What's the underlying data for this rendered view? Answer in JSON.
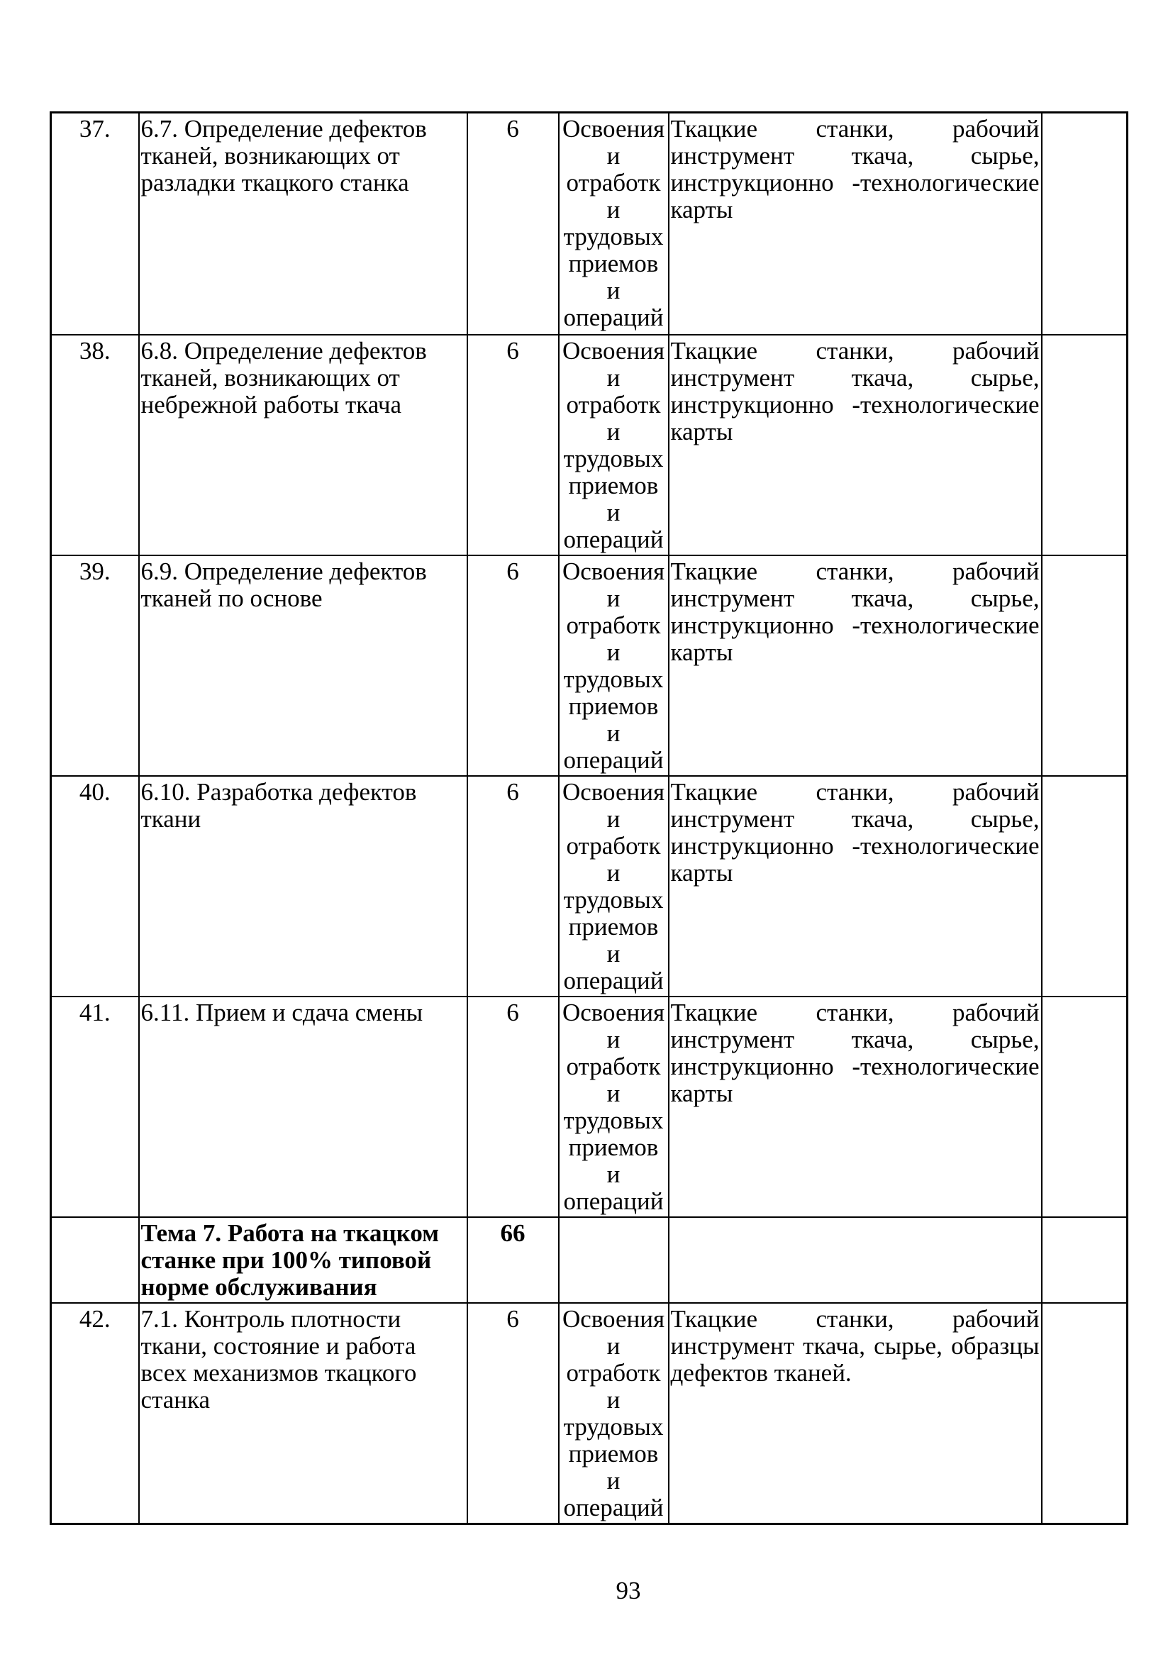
{
  "page": {
    "number": "93"
  },
  "table": {
    "rows": [
      {
        "num": "37.",
        "topic": "6.7. Определение дефектов тканей, возникающих от разладки ткацкого станка",
        "hours": "6",
        "form": "Освоения\nи\nотработк\nи\nтрудовых\nприемов\nи\nопераций",
        "equipment_lines": [
          "Ткацкие станки, рабочий",
          "инструмент ткача, сырье,",
          "инструкционно -технологические",
          "карты"
        ],
        "notes": ""
      },
      {
        "num": "38.",
        "topic": "6.8. Определение дефектов тканей, возникающих от небрежной работы ткача",
        "hours": "6",
        "form": "Освоения\nи\nотработк\nи\nтрудовых\nприемов\nи\nопераций",
        "equipment_lines": [
          "Ткацкие станки, рабочий",
          "инструмент ткача, сырье,",
          "инструкционно -технологические",
          "карты"
        ],
        "notes": ""
      },
      {
        "num": "39.",
        "topic": "6.9. Определение дефектов тканей по основе",
        "hours": "6",
        "form": "Освоения\nи\nотработк\nи\nтрудовых\nприемов\nи\nопераций",
        "equipment_lines": [
          "Ткацкие станки, рабочий",
          "инструмент ткача, сырье,",
          "инструкционно -технологические",
          "карты"
        ],
        "notes": ""
      },
      {
        "num": "40.",
        "topic": "6.10. Разработка дефектов ткани",
        "hours": "6",
        "form": "Освоения\nи\nотработк\nи\nтрудовых\nприемов\nи\nопераций",
        "equipment_lines": [
          "Ткацкие станки, рабочий",
          "инструмент ткача, сырье,",
          "инструкционно -технологические",
          "карты"
        ],
        "notes": ""
      },
      {
        "num": "41.",
        "topic": "6.11. Прием и сдача смены",
        "hours": "6",
        "form": "Освоения\nи\nотработк\nи\nтрудовых\nприемов\nи\nопераций",
        "equipment_lines": [
          "Ткацкие станки, рабочий",
          "инструмент ткача, сырье,",
          "инструкционно -технологические",
          "карты"
        ],
        "notes": ""
      },
      {
        "num": "",
        "topic": "Тема 7. Работа на ткацком станке при 100% типовой норме обслуживания",
        "hours": "66",
        "form": "",
        "equipment_lines": [],
        "notes": ""
      },
      {
        "num": "42.",
        "topic": "7.1. Контроль плотности ткани, состояние и работа всех механизмов ткацкого станка",
        "hours": "6",
        "form": "Освоения\nи\nотработк\nи\nтрудовых\nприемов\nи\nопераций",
        "equipment_lines": [
          "Ткацкие станки, рабочий",
          "инструмент ткача, сырье, образцы",
          "дефектов тканей."
        ],
        "notes": ""
      }
    ]
  }
}
